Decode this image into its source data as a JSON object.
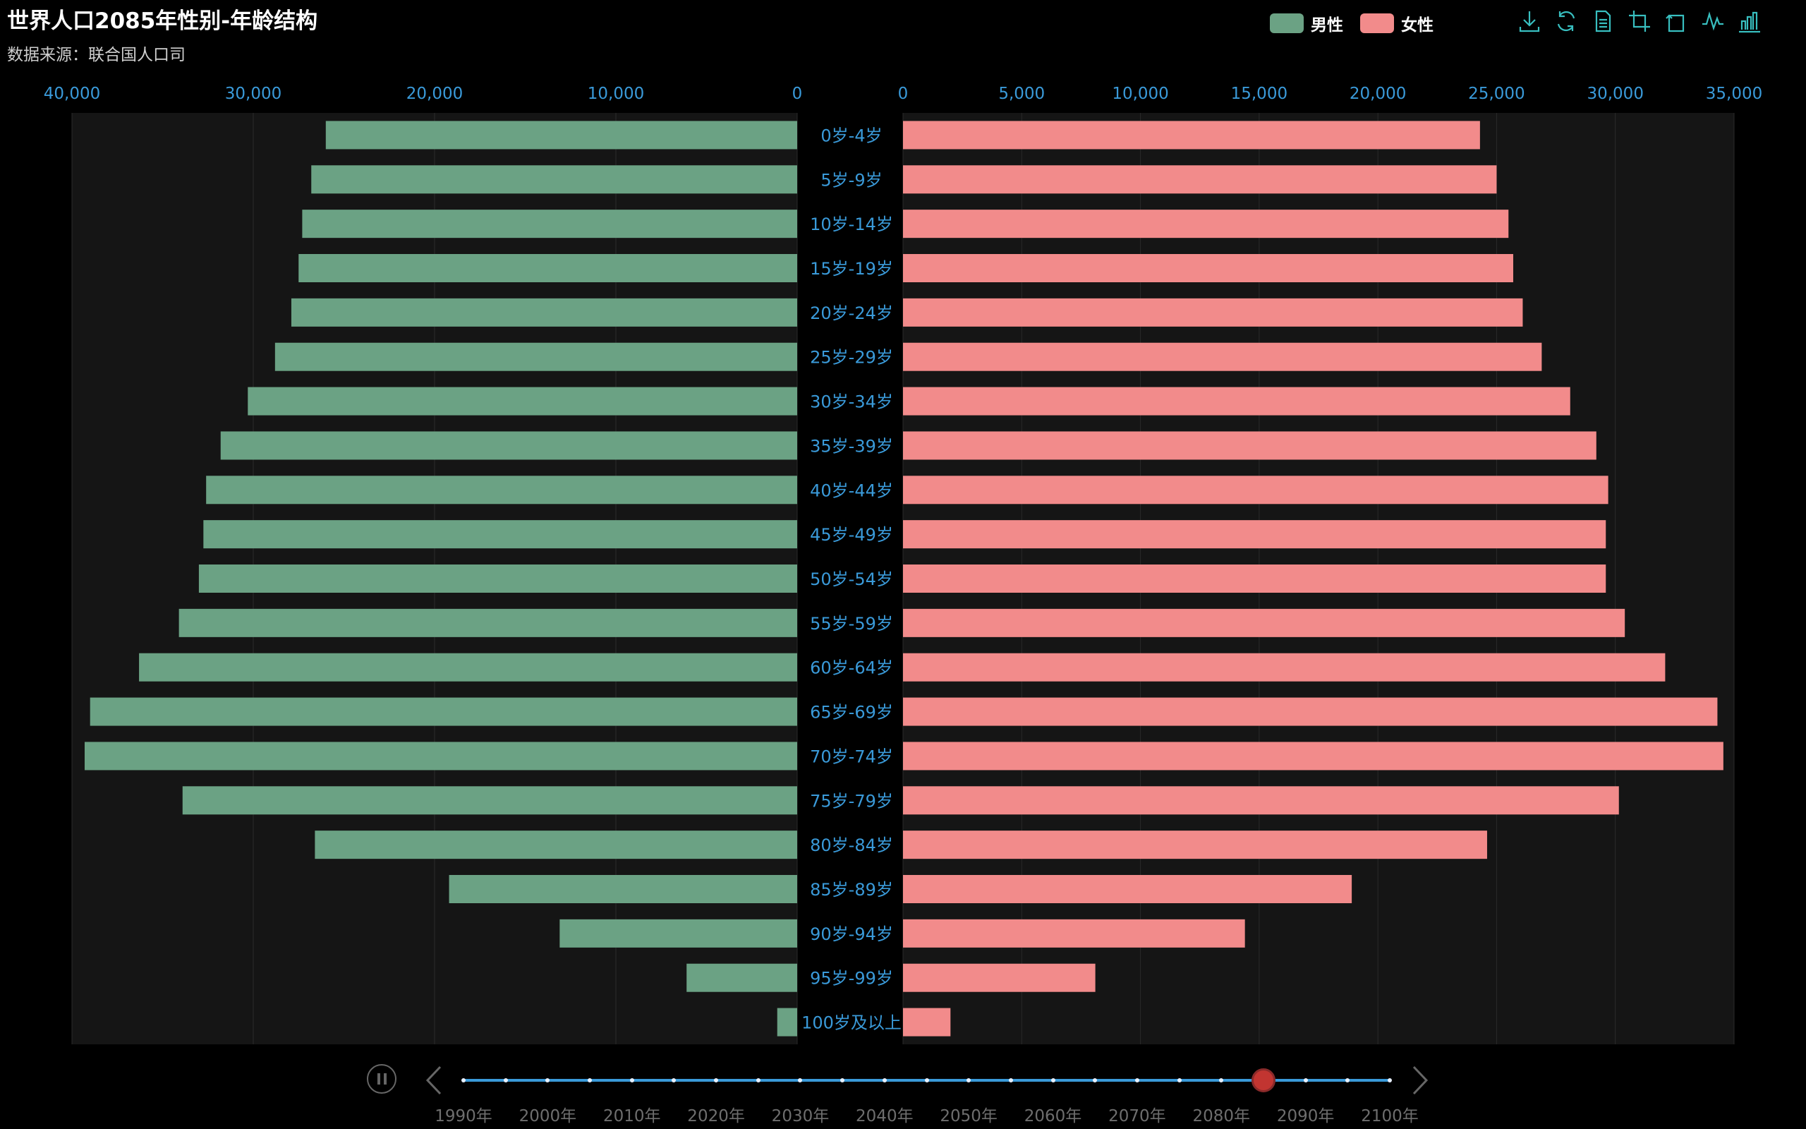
{
  "title": "世界人口2085年性别-年龄结构",
  "subtitle": "数据来源：联合国人口司",
  "legend": [
    {
      "name": "男性",
      "color": "#6ba284"
    },
    {
      "name": "女性",
      "color": "#f28b8b"
    }
  ],
  "toolbox": {
    "color": "#38bfc0",
    "icons": [
      "download-icon",
      "refresh-icon",
      "data-view-icon",
      "zoom-icon",
      "zoom-reset-icon",
      "line-chart-icon",
      "bar-chart-icon"
    ]
  },
  "colors": {
    "axis_label": "#3a9ad9",
    "grid_bg": "#151515",
    "grid_line": "#2a2a2a",
    "timeline": "#3a9ad9",
    "timeline_marker": "#c23531"
  },
  "chart_data": {
    "type": "bar",
    "categories": [
      "0岁-4岁",
      "5岁-9岁",
      "10岁-14岁",
      "15岁-19岁",
      "20岁-24岁",
      "25岁-29岁",
      "30岁-34岁",
      "35岁-39岁",
      "40岁-44岁",
      "45岁-49岁",
      "50岁-54岁",
      "55岁-59岁",
      "60岁-64岁",
      "65岁-69岁",
      "70岁-74岁",
      "75岁-79岁",
      "80岁-84岁",
      "85岁-89岁",
      "90岁-94岁",
      "95岁-99岁",
      "100岁及以上"
    ],
    "series": [
      {
        "name": "男性",
        "values": [
          26000,
          26800,
          27300,
          27500,
          27900,
          28800,
          30300,
          31800,
          32600,
          32750,
          33000,
          34100,
          36300,
          39000,
          39300,
          33900,
          26600,
          19200,
          13100,
          6100,
          1100
        ]
      },
      {
        "name": "女性",
        "values": [
          24300,
          25000,
          25500,
          25700,
          26100,
          26900,
          28100,
          29200,
          29700,
          29600,
          29600,
          30400,
          32100,
          34300,
          34550,
          30150,
          24600,
          18900,
          14400,
          8100,
          2000
        ]
      }
    ],
    "left_axis": {
      "ticks": [
        "40,000",
        "30,000",
        "20,000",
        "10,000",
        "0"
      ],
      "max": 40000
    },
    "right_axis": {
      "ticks": [
        "0",
        "5,000",
        "10,000",
        "15,000",
        "20,000",
        "25,000",
        "30,000",
        "35,000"
      ],
      "max": 35000
    },
    "legend_position": "top-right"
  },
  "timeline": {
    "labels": [
      "1990年",
      "2000年",
      "2010年",
      "2020年",
      "2030年",
      "2040年",
      "2050年",
      "2060年",
      "2070年",
      "2080年",
      "2090年",
      "2100年"
    ],
    "start_year": 1990,
    "end_year": 2100,
    "step_years": 5,
    "current_year": 2085,
    "playing": true
  }
}
